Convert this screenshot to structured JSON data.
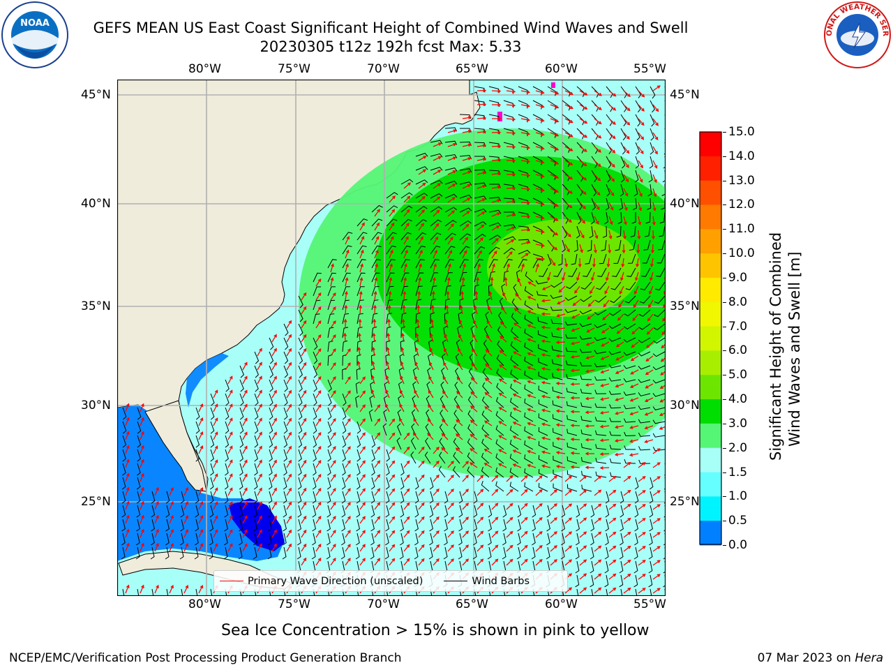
{
  "header": {
    "title_line1": "GEFS MEAN US East Coast Significant Height of Combined Wind Waves and Swell",
    "title_line2": "20230305 t12z 192h fcst   Max: 5.33"
  },
  "map": {
    "x_ticks": [
      "80°W",
      "75°W",
      "70°W",
      "65°W",
      "60°W",
      "55°W"
    ],
    "y_ticks": [
      "45°N",
      "40°N",
      "35°N",
      "30°N",
      "25°N"
    ],
    "land_color": "#efecdc",
    "grid_color": "#b0b0b0",
    "wave_arrow_color": "#ff0000",
    "wind_barb_color": "#000000"
  },
  "legend": {
    "wave_label": "Primary Wave Direction (unscaled)",
    "wind_label": "Wind Barbs"
  },
  "colorbar": {
    "label_line1": "Significant Height of Combined",
    "label_line2": "Wind Waves and Swell [m]",
    "ticks": [
      "15.0",
      "14.0",
      "13.0",
      "12.0",
      "11.0",
      "10.0",
      "9.0",
      "8.0",
      "7.0",
      "6.0",
      "5.0",
      "4.0",
      "3.0",
      "2.0",
      "1.5",
      "1.0",
      "0.5",
      "0.0"
    ],
    "colors": [
      "#ff0000",
      "#ff2000",
      "#ff5000",
      "#ff7a00",
      "#ffa000",
      "#ffc400",
      "#ffea00",
      "#f0f700",
      "#d2f500",
      "#a8ee00",
      "#6ce600",
      "#00dd00",
      "#55f575",
      "#a8fff8",
      "#66ffff",
      "#00f4ff",
      "#0080ff",
      "#0000ee"
    ]
  },
  "footer": {
    "ice_note": "Sea Ice Concentration > 15% is shown in pink to yellow",
    "left": "NCEP/EMC/Verification Post Processing Product Generation Branch",
    "right_date": "07 Mar 2023 on ",
    "right_host": "Hera"
  },
  "logos": {
    "left_text": "NOAA",
    "right_text": "NATIONAL WEATHER SERVICE"
  }
}
